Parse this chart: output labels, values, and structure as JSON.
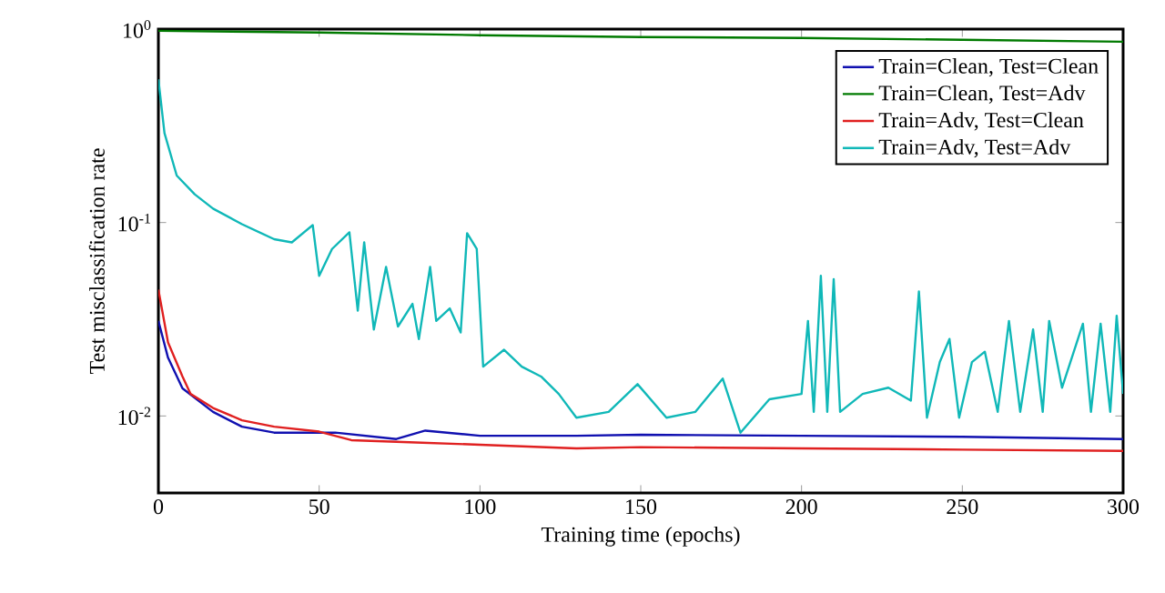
{
  "chart_data": {
    "type": "line",
    "xlabel": "Training time (epochs)",
    "ylabel": "Test misclassification rate",
    "log": "y",
    "grid": false,
    "legend": "top right",
    "marker": "none",
    "line_style": "solid",
    "xlim": [
      0,
      300
    ],
    "xticks": [
      0,
      50,
      100,
      150,
      200,
      250,
      300
    ],
    "ylim": [
      0.004,
      1
    ],
    "yticks": [
      {
        "value": 1,
        "label": "10$^{0}$"
      },
      {
        "value": 0.1,
        "label": "10$^{-1}$"
      },
      {
        "value": 0.01,
        "label": "10$^{-2}$"
      }
    ],
    "series": [
      {
        "name": "Train=Clean, Test=Clean",
        "color": "#1010b0",
        "x": [
          0,
          3,
          7.5,
          17,
          26,
          36,
          55,
          74,
          83,
          100,
          130,
          150,
          200,
          250,
          300
        ],
        "values": [
          0.031,
          0.02,
          0.0139,
          0.0105,
          0.0088,
          0.0082,
          0.0082,
          0.0076,
          0.0084,
          0.0079,
          0.0079,
          0.008,
          0.0079,
          0.0078,
          0.0076
        ]
      },
      {
        "name": "Train=Clean, Test=Adv",
        "color": "#007a00",
        "x": [
          0,
          50,
          100,
          150,
          200,
          250,
          300
        ],
        "values": [
          0.98,
          0.96,
          0.93,
          0.91,
          0.9,
          0.88,
          0.86
        ]
      },
      {
        "name": "Train=Adv, Test=Clean",
        "color": "#e02020",
        "x": [
          0,
          3,
          7.5,
          10,
          17,
          26,
          36,
          50,
          60,
          80,
          100,
          130,
          150,
          200,
          250,
          300
        ],
        "values": [
          0.045,
          0.024,
          0.016,
          0.013,
          0.011,
          0.0095,
          0.0088,
          0.0083,
          0.0075,
          0.0073,
          0.0071,
          0.0068,
          0.0069,
          0.0068,
          0.0067,
          0.0066
        ]
      },
      {
        "name": "Train=Adv, Test=Adv",
        "color": "#10b8b8",
        "x": [
          0,
          1.9,
          5.7,
          11.3,
          17,
          26,
          36,
          41.5,
          48,
          50,
          54,
          59.4,
          62,
          64,
          67,
          70.8,
          74.5,
          79,
          81,
          84.5,
          86.4,
          90.6,
          94,
          96,
          99,
          101,
          107.5,
          113,
          119,
          124.5,
          130,
          140,
          149,
          158,
          167,
          175.5,
          181,
          190,
          200,
          202,
          203.8,
          206,
          208,
          210,
          212,
          219,
          227,
          234,
          236.5,
          239,
          243,
          246,
          249,
          253,
          257,
          261,
          264.5,
          268,
          272,
          275,
          277,
          281,
          287.5,
          290,
          293,
          296,
          298,
          300
        ],
        "values": [
          0.55,
          0.29,
          0.175,
          0.14,
          0.118,
          0.098,
          0.082,
          0.079,
          0.097,
          0.053,
          0.073,
          0.089,
          0.035,
          0.079,
          0.028,
          0.059,
          0.029,
          0.038,
          0.025,
          0.059,
          0.031,
          0.036,
          0.027,
          0.088,
          0.073,
          0.018,
          0.022,
          0.018,
          0.016,
          0.013,
          0.0098,
          0.0105,
          0.0146,
          0.0098,
          0.0105,
          0.0156,
          0.0082,
          0.0122,
          0.013,
          0.031,
          0.0105,
          0.053,
          0.0105,
          0.051,
          0.0105,
          0.013,
          0.014,
          0.012,
          0.044,
          0.0098,
          0.019,
          0.025,
          0.0098,
          0.019,
          0.0215,
          0.0105,
          0.031,
          0.0105,
          0.028,
          0.0105,
          0.031,
          0.014,
          0.03,
          0.0105,
          0.03,
          0.0105,
          0.033,
          0.013
        ]
      }
    ]
  }
}
